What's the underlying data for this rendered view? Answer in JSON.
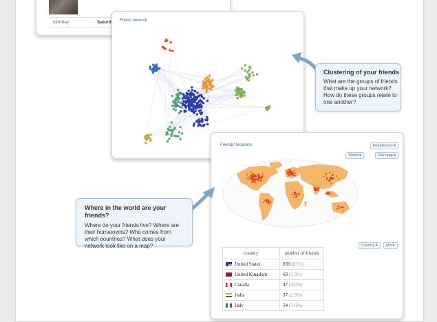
{
  "profile": {
    "birthday_label": "birthday",
    "birthday_value": "Saturday, Aug"
  },
  "network_card": {
    "title": "Friend network"
  },
  "locations_card": {
    "title": "Friends' locations",
    "residences_select": "Residences ▾",
    "world_select": "World ▾",
    "citymap_select": "City map ▾",
    "country_select": "Country ▾",
    "more_button": "More",
    "table": {
      "headers": [
        "country",
        "number of friends"
      ],
      "rows": [
        {
          "flag": "us",
          "country": "United States",
          "count": "839",
          "pct": "(65%)"
        },
        {
          "flag": "gb",
          "country": "United Kingdom",
          "count": "69",
          "pct": "(5.3%)"
        },
        {
          "flag": "ca",
          "country": "Canada",
          "count": "47",
          "pct": "(3.6%)"
        },
        {
          "flag": "in",
          "country": "India",
          "count": "37",
          "pct": "(2.9%)"
        },
        {
          "flag": "it",
          "country": "Italy",
          "count": "34",
          "pct": "(2.6%)"
        }
      ]
    }
  },
  "callout_clustering": {
    "title": "Clustering of your friends",
    "body": "What are the groups of friends that make up your network? How do these groups relate to one another?"
  },
  "callout_world": {
    "title": "Where in the world are your friends?",
    "body": "Where do your friends live? Where are their hometowns? Who comes from which countries? What does your network look like on a map?"
  },
  "colors": {
    "accent": "#3b6aa8",
    "callout_bg": "#eef4fb",
    "arrow": "#7fa7c4",
    "cluster_blue": "#2b3fa6",
    "cluster_orange": "#e39a35",
    "cluster_green": "#7fae56",
    "cluster_teal": "#5aa47c",
    "cluster_red": "#d9541f",
    "map_land": "#f4b66a",
    "map_dense": "#e23a10"
  }
}
